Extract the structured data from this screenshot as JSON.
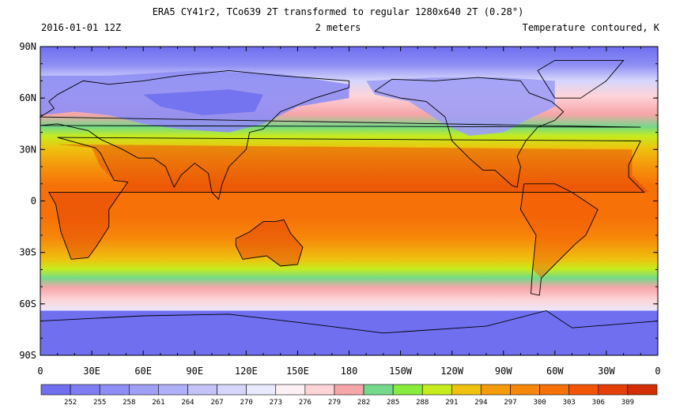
{
  "header": {
    "title": "ERA5 CY41r2, TCo639 2T transformed to regular 1280x640 2T (0.28°)",
    "date": "2016-01-01 12Z",
    "level": "2 meters",
    "field": "Temperature contoured, K"
  },
  "map": {
    "projection": "equirectangular",
    "lon_range": [
      0,
      360
    ],
    "lat_range": [
      -90,
      90
    ],
    "lat_ticks": [
      "90N",
      "60N",
      "30N",
      "0",
      "30S",
      "60S",
      "90S"
    ],
    "lon_ticks": [
      "0",
      "30E",
      "60E",
      "90E",
      "120E",
      "150E",
      "180",
      "150W",
      "120W",
      "90W",
      "60W",
      "30W",
      "0"
    ]
  },
  "legend": {
    "levels": [
      "252",
      "255",
      "258",
      "261",
      "264",
      "267",
      "270",
      "273",
      "276",
      "279",
      "282",
      "285",
      "288",
      "291",
      "294",
      "297",
      "300",
      "303",
      "306",
      "309"
    ],
    "colors": [
      "#6f6ff0",
      "#7e7ef2",
      "#8e8ef4",
      "#9f9ff6",
      "#b0b0f8",
      "#c3c3fa",
      "#d6d6fc",
      "#eaeafe",
      "#fdf0f4",
      "#fdd4d8",
      "#f6a5a8",
      "#74d98a",
      "#88ec3c",
      "#c6ec1e",
      "#eec20e",
      "#f59b0c",
      "#f7870a",
      "#f67108",
      "#f25506",
      "#e33f06",
      "#d42e04"
    ]
  }
}
